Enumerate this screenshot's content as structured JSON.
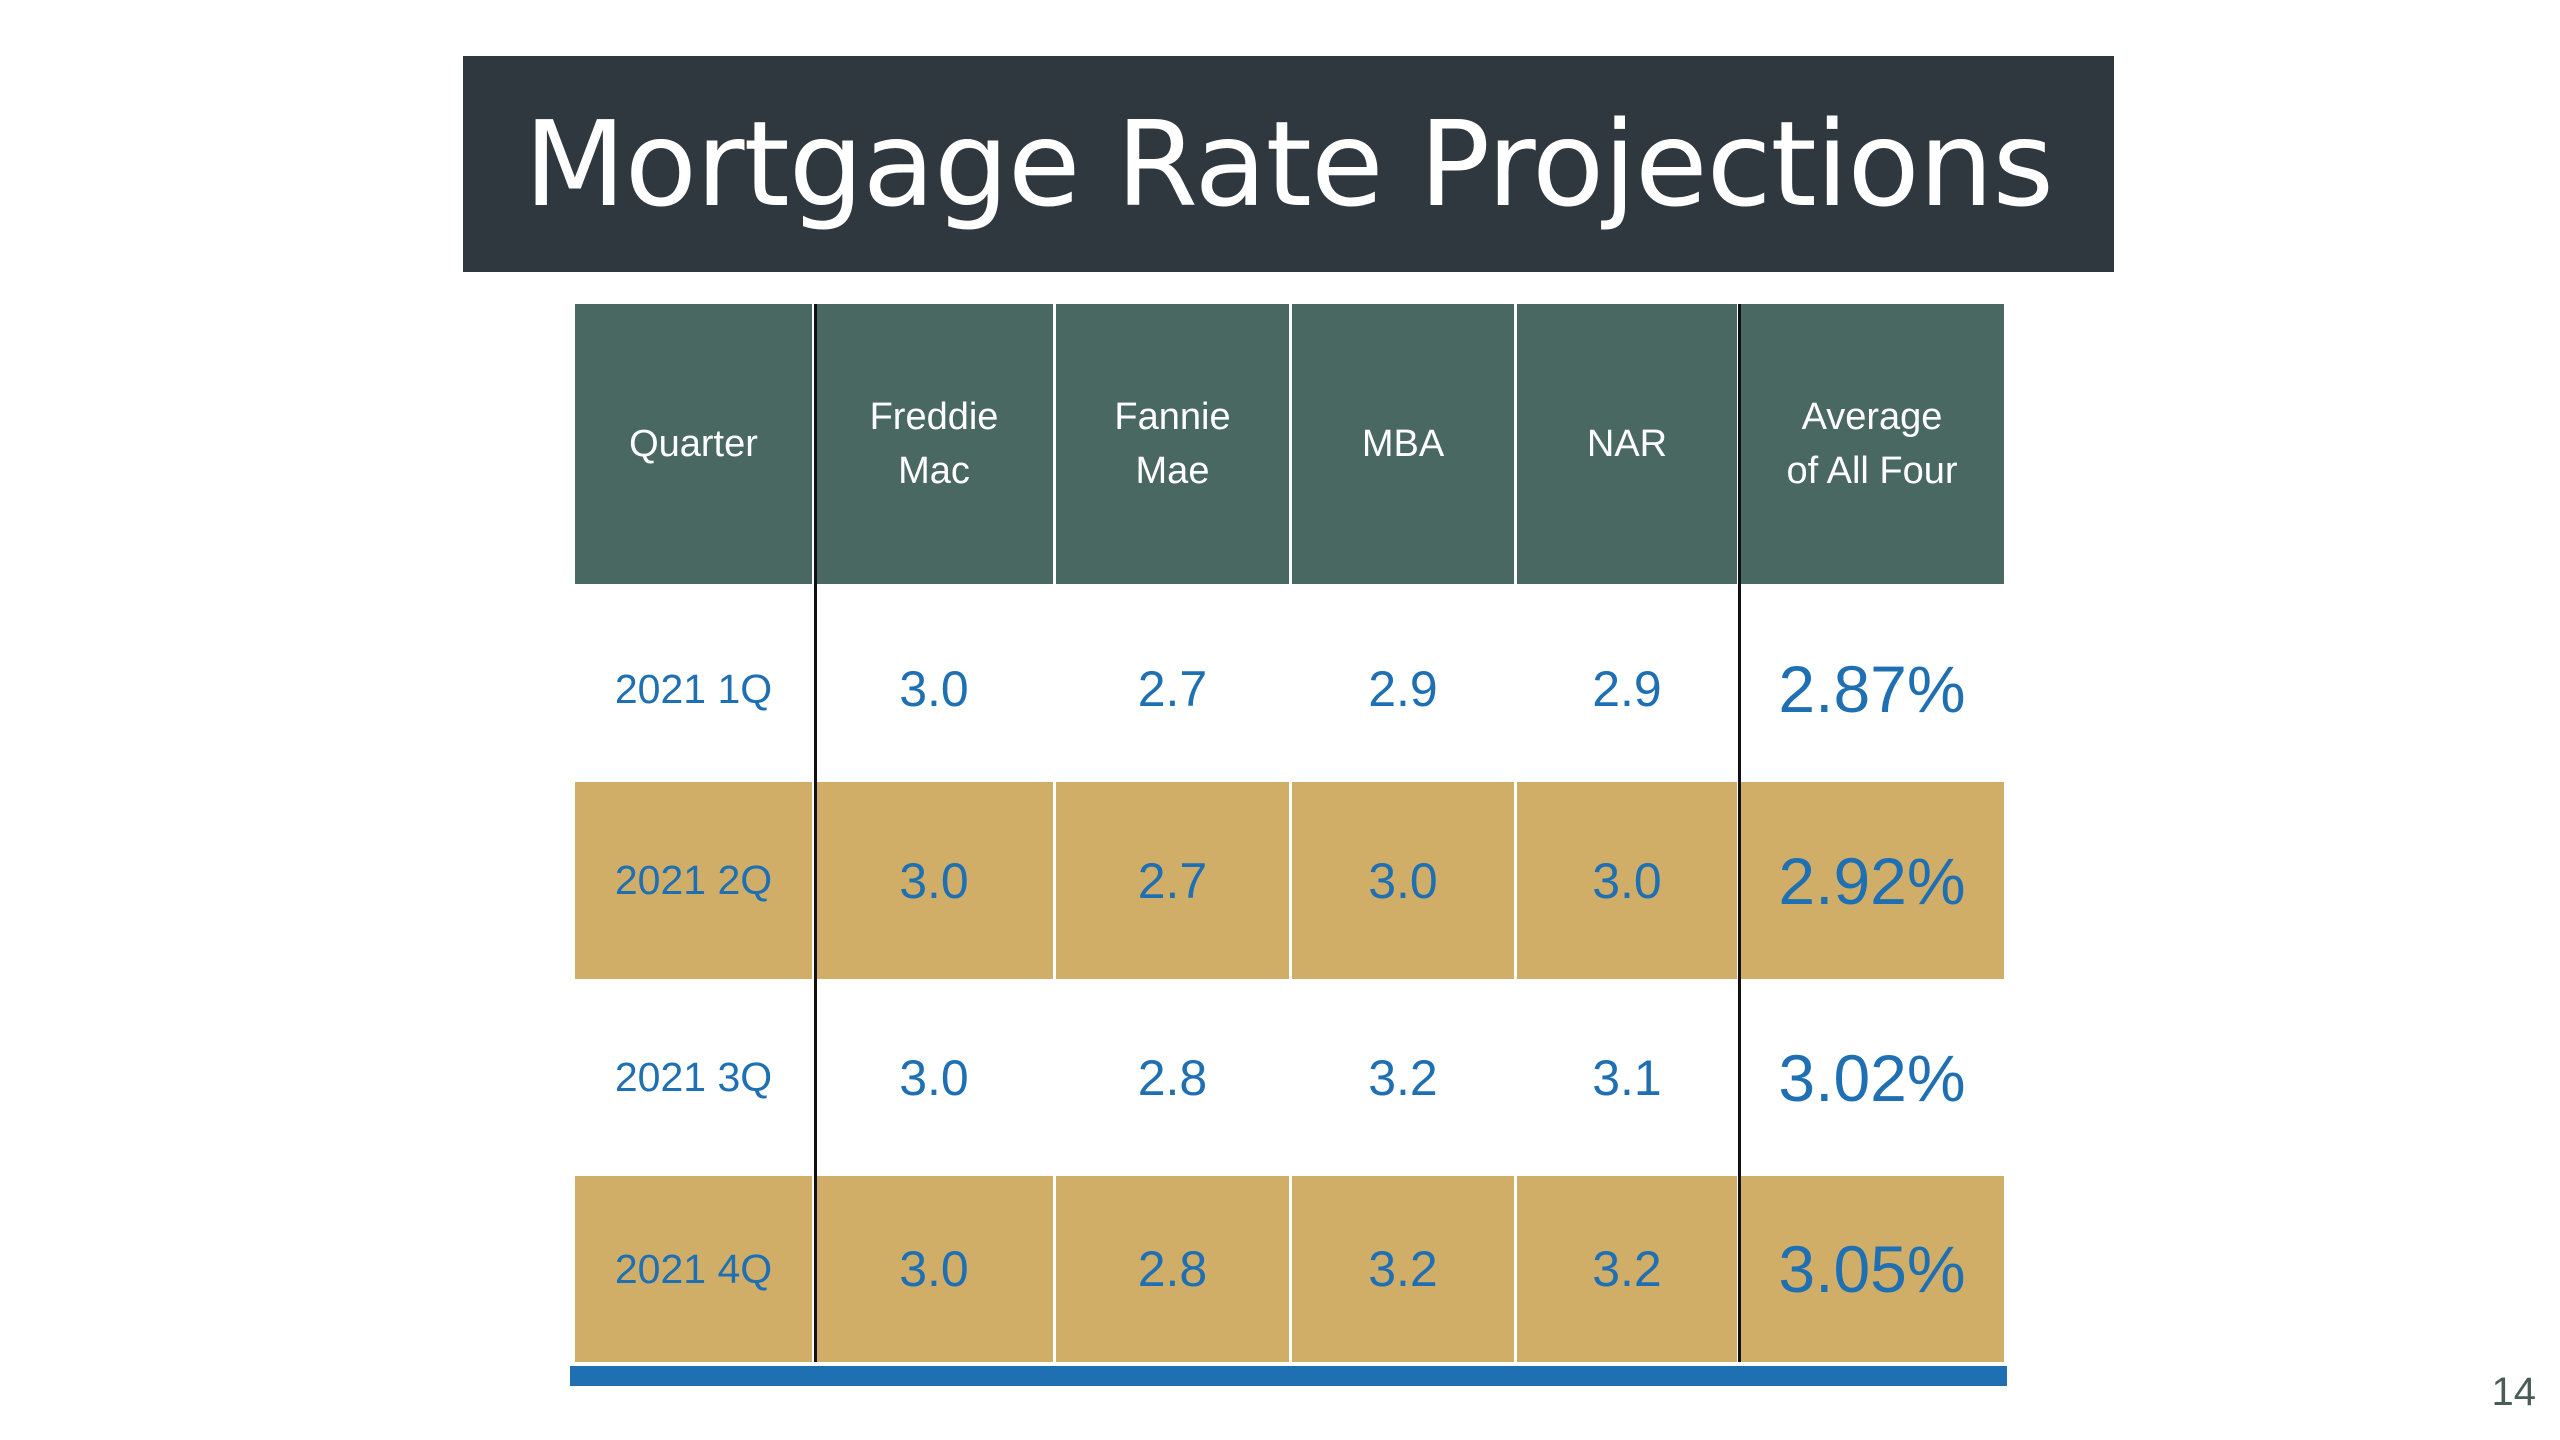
{
  "slide": {
    "title": "Mortgage Rate Projections",
    "page_number": "14"
  },
  "table": {
    "headers": [
      [
        "Quarter"
      ],
      [
        "Freddie",
        "Mac"
      ],
      [
        "Fannie",
        "Mae"
      ],
      [
        "MBA"
      ],
      [
        "NAR"
      ],
      [
        "Average",
        "of All Four"
      ]
    ],
    "rows": [
      [
        "2021 1Q",
        "3.0",
        "2.7",
        "2.9",
        "2.9",
        "2.87%"
      ],
      [
        "2021 2Q",
        "3.0",
        "2.7",
        "3.0",
        "3.0",
        "2.92%"
      ],
      [
        "2021 3Q",
        "3.0",
        "2.8",
        "3.2",
        "3.1",
        "3.02%"
      ],
      [
        "2021 4Q",
        "3.0",
        "2.8",
        "3.2",
        "3.2",
        "3.05%"
      ]
    ]
  },
  "colors": {
    "title_bg": "#2f383f",
    "header_bg": "#4a6862",
    "band_gold": "#d0ae68",
    "value_blue": "#1f6fb3"
  }
}
